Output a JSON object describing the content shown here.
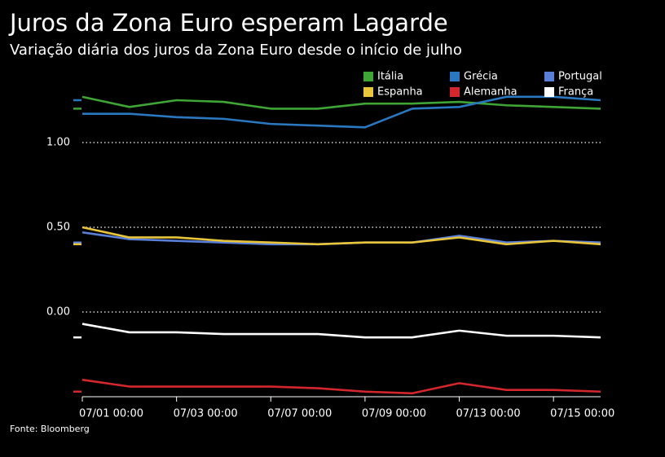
{
  "chart_data": {
    "type": "line",
    "title": "Juros da Zona Euro esperam Lagarde",
    "subtitle": "Variação diária dos juros da Zona Euro desde o início de julho",
    "source": "Fonte: Bloomberg",
    "categories": [
      "07/01 00:00",
      null,
      "07/03 00:00",
      null,
      "07/07 00:00",
      null,
      "07/09 00:00",
      null,
      "07/13 00:00",
      null,
      "07/15 00:00",
      null
    ],
    "series": [
      {
        "name": "Itália",
        "color": "#3fa535",
        "values": [
          1.27,
          1.21,
          1.25,
          1.24,
          1.2,
          1.2,
          1.23,
          1.23,
          1.24,
          1.22,
          1.21,
          1.2
        ]
      },
      {
        "name": "Grécia",
        "color": "#2a78c0",
        "values": [
          1.17,
          1.17,
          1.15,
          1.14,
          1.11,
          1.1,
          1.09,
          1.2,
          1.21,
          1.27,
          1.27,
          1.25
        ]
      },
      {
        "name": "Portugal",
        "color": "#5a7fd8",
        "values": [
          0.47,
          0.43,
          0.42,
          0.41,
          0.4,
          0.4,
          0.41,
          0.41,
          0.45,
          0.41,
          0.42,
          0.41
        ]
      },
      {
        "name": "Espanha",
        "color": "#e8c53a",
        "values": [
          0.5,
          0.44,
          0.44,
          0.42,
          0.41,
          0.4,
          0.41,
          0.41,
          0.44,
          0.4,
          0.42,
          0.4
        ]
      },
      {
        "name": "Alemanha",
        "color": "#d3262d",
        "values": [
          -0.4,
          -0.44,
          -0.44,
          -0.44,
          -0.44,
          -0.45,
          -0.47,
          -0.48,
          -0.42,
          -0.46,
          -0.46,
          -0.47
        ]
      },
      {
        "name": "França",
        "color": "#ffffff",
        "values": [
          -0.07,
          -0.12,
          -0.12,
          -0.13,
          -0.13,
          -0.13,
          -0.15,
          -0.15,
          -0.11,
          -0.14,
          -0.14,
          -0.15
        ]
      }
    ],
    "ylim": [
      -0.5,
      1.3
    ],
    "yticks": [
      {
        "value": 0,
        "label": "0.00"
      },
      {
        "value": 0.5,
        "label": "0.50"
      },
      {
        "value": 1,
        "label": "1.00"
      }
    ],
    "grid": true
  }
}
